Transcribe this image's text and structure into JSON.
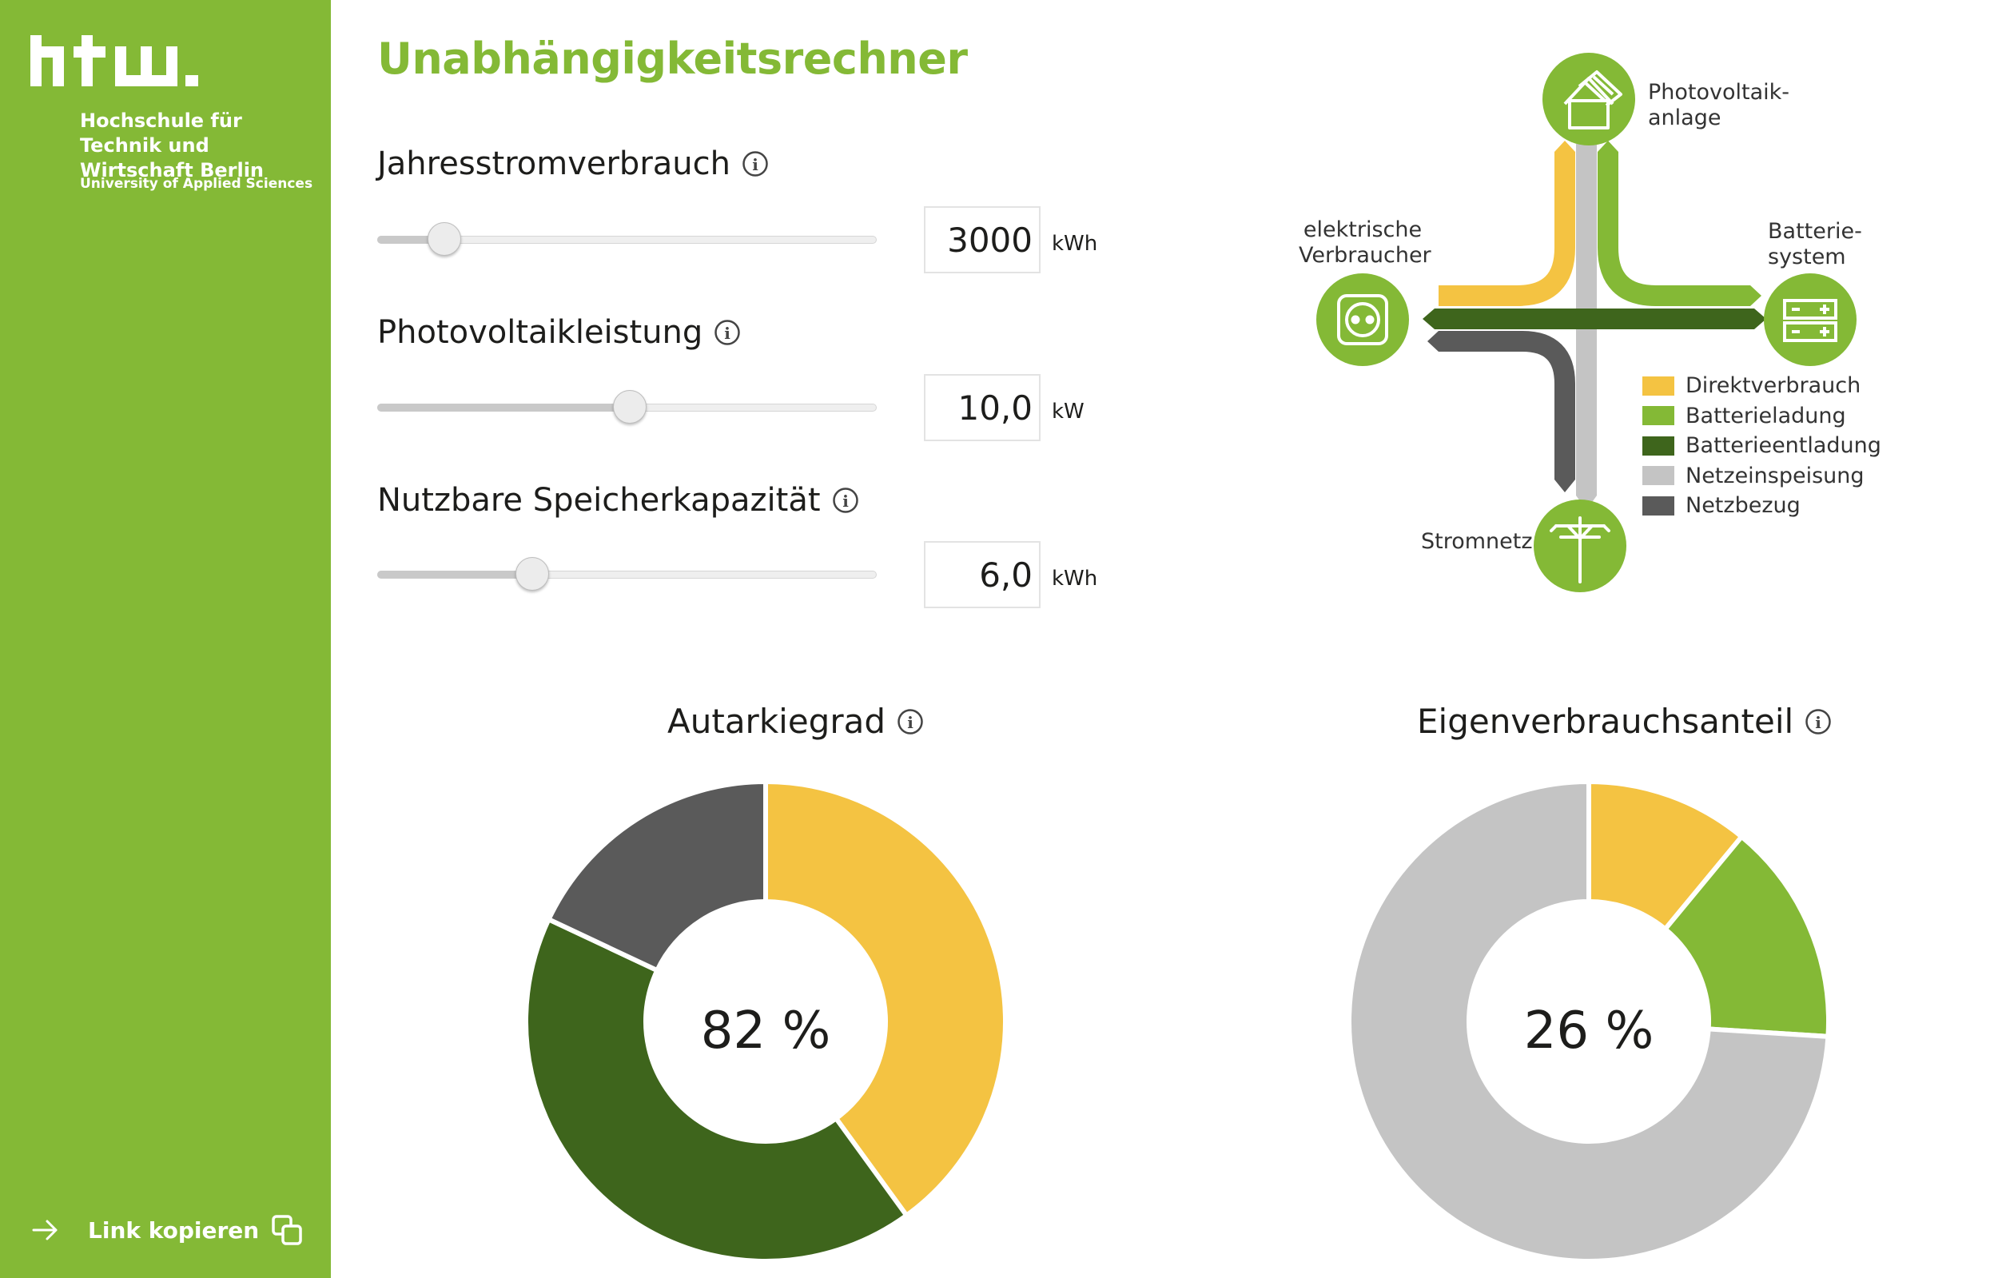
{
  "sidebar": {
    "university_name": "Hochschule für Technik und Wirtschaft Berlin",
    "university_subtitle": "University of Applied Sciences",
    "link_label": "Link kopieren"
  },
  "title": "Unabhängigkeitsrechner",
  "inputs": [
    {
      "label": "Jahresstromverbrauch",
      "value": "3000",
      "unit": "kWh",
      "slider_fraction": 0.135
    },
    {
      "label": "Photovoltaikleistung",
      "value": "10,0",
      "unit": "kW",
      "slider_fraction": 0.505
    },
    {
      "label": "Nutzbare Speicherkapazität",
      "value": "6,0",
      "unit": "kWh",
      "slider_fraction": 0.31
    }
  ],
  "diagram": {
    "pv": "Photovoltaik-\nanlage",
    "consumer": "elektrische\nVerbraucher",
    "battery": "Batterie-\nsystem",
    "grid": "Stromnetz",
    "legend": [
      {
        "label": "Direktverbrauch",
        "color": "#f4c342"
      },
      {
        "label": "Batterieladung",
        "color": "#84b936"
      },
      {
        "label": "Batterieentladung",
        "color": "#3e651c"
      },
      {
        "label": "Netzeinspeisung",
        "color": "#c4c4c4"
      },
      {
        "label": "Netzbezug",
        "color": "#5a5a5a"
      }
    ]
  },
  "chart_data": [
    {
      "type": "pie",
      "title": "Autarkiegrad",
      "center_label": "82 %",
      "categories": [
        "Direktverbrauch",
        "Batterieentladung",
        "Netzbezug"
      ],
      "values": [
        40,
        42,
        18
      ],
      "colors": [
        "#f4c342",
        "#3e651c",
        "#5a5a5a"
      ]
    },
    {
      "type": "pie",
      "title": "Eigenverbrauchsanteil",
      "center_label": "26 %",
      "categories": [
        "Direktverbrauch",
        "Batterieladung",
        "Netzeinspeisung"
      ],
      "values": [
        11,
        15,
        74
      ],
      "colors": [
        "#f4c342",
        "#84b936",
        "#c4c4c4"
      ]
    }
  ]
}
